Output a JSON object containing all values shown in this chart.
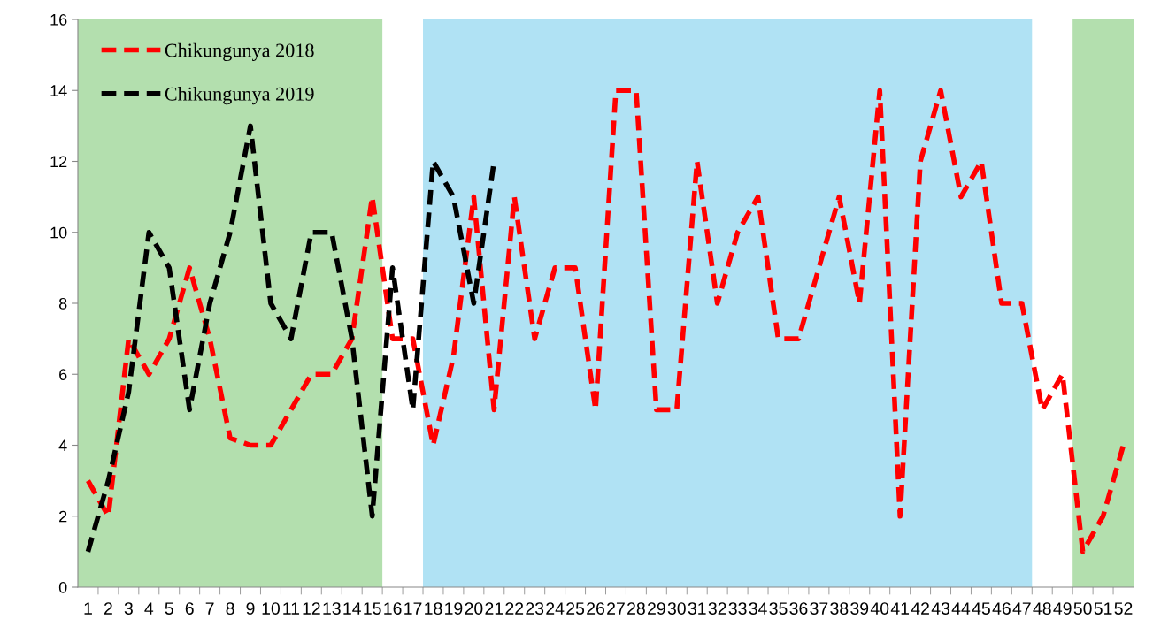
{
  "chart_data": {
    "type": "line",
    "categories": [
      "1",
      "2",
      "3",
      "4",
      "5",
      "6",
      "7",
      "8",
      "9",
      "10",
      "11",
      "12",
      "13",
      "14",
      "15",
      "16",
      "17",
      "18",
      "19",
      "20",
      "21",
      "22",
      "23",
      "24",
      "25",
      "26",
      "27",
      "28",
      "29",
      "30",
      "31",
      "32",
      "33",
      "34",
      "35",
      "36",
      "37",
      "38",
      "39",
      "40",
      "41",
      "42",
      "43",
      "44",
      "45",
      "46",
      "47",
      "48",
      "49",
      "50",
      "51",
      "52"
    ],
    "series": [
      {
        "name": "Chikungunya 2018",
        "color": "#ff0000",
        "values": [
          3,
          2,
          7,
          6,
          7,
          9,
          7,
          4.2,
          4,
          4,
          5,
          6,
          6,
          7,
          11,
          7,
          7,
          4,
          6.5,
          11,
          5,
          11,
          7,
          9,
          9,
          5,
          14,
          14,
          5,
          5,
          12,
          8,
          10,
          11,
          7,
          7,
          9,
          11,
          8,
          14,
          2,
          12,
          14,
          11,
          12,
          8,
          8,
          5,
          6,
          1,
          2,
          4
        ]
      },
      {
        "name": "Chikungunya 2019",
        "color": "#000000",
        "values": [
          1,
          3,
          5.5,
          10,
          9,
          5,
          8,
          10,
          13,
          8,
          7,
          10,
          10,
          7,
          2,
          9,
          5,
          12,
          11,
          8,
          12,
          null,
          null,
          null,
          null,
          null,
          null,
          null,
          null,
          null,
          null,
          null,
          null,
          null,
          null,
          null,
          null,
          null,
          null,
          null,
          null,
          null,
          null,
          null,
          null,
          null,
          null,
          null,
          null,
          null,
          null,
          null
        ]
      }
    ],
    "ylim": [
      0,
      16
    ],
    "yticks": [
      0,
      2,
      4,
      6,
      8,
      10,
      12,
      14,
      16
    ],
    "bands": [
      {
        "axis": "x",
        "from": "1",
        "to": "15",
        "color": "#b3dfae"
      },
      {
        "axis": "x",
        "from": "18",
        "to": "47",
        "color": "#b0e2f4"
      },
      {
        "axis": "x",
        "from": "50",
        "to": "52",
        "color": "#b3dfae"
      }
    ],
    "legend": "top left",
    "line_style": "dashed",
    "marker": "none",
    "grid": false
  }
}
